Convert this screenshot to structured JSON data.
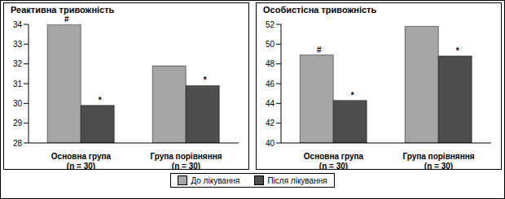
{
  "chart_data": [
    {
      "type": "bar",
      "title": "Реактивна тривожність",
      "categories": [
        "Основна група\n(n = 30)",
        "Група порівняння\n(n = 30)"
      ],
      "series": [
        {
          "name": "До лікування",
          "color": "#a6a6a6",
          "values": [
            34,
            31.9
          ],
          "annotations": [
            "#",
            null
          ]
        },
        {
          "name": "Після лікування",
          "color": "#4d4d4d",
          "values": [
            29.9,
            30.9
          ],
          "annotations": [
            "*",
            "*"
          ]
        }
      ],
      "ylim": [
        28,
        34
      ],
      "yticks": [
        28,
        29,
        30,
        31,
        32,
        33,
        34
      ],
      "grid": false,
      "legend": "bottom"
    },
    {
      "type": "bar",
      "title": "Особистісна тривожність",
      "categories": [
        "Основна група\n(n = 30)",
        "Група порівняння\n(n = 30)"
      ],
      "series": [
        {
          "name": "До лікування",
          "color": "#a6a6a6",
          "values": [
            48.9,
            51.8
          ],
          "annotations": [
            "#",
            null
          ]
        },
        {
          "name": "Після лікування",
          "color": "#4d4d4d",
          "values": [
            44.3,
            48.8
          ],
          "annotations": [
            "*",
            "*"
          ]
        }
      ],
      "ylim": [
        40,
        52
      ],
      "yticks": [
        40,
        42,
        44,
        46,
        48,
        50,
        52
      ],
      "grid": false
    }
  ]
}
